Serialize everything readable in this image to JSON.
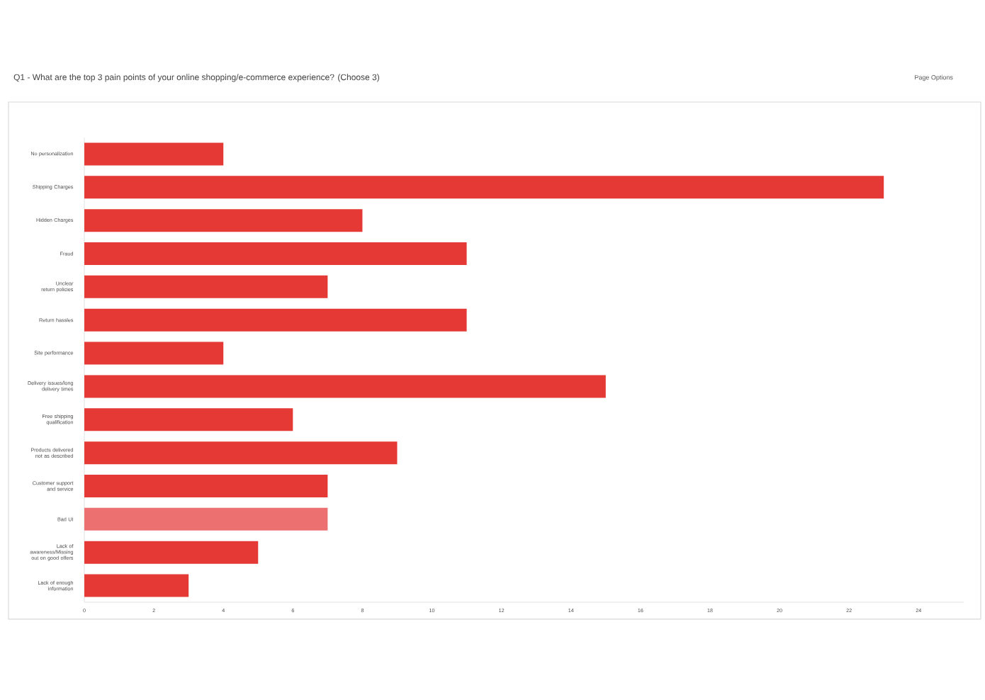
{
  "chart_data": {
    "type": "bar",
    "orientation": "horizontal",
    "title": "Q1 - What are the top 3 pain points of your online shopping/e-commerce experience? (Choose 3)",
    "annotations": [
      "Page Options"
    ],
    "categories": [
      "No personalization",
      "Shipping Charges",
      "Hidden Charges",
      "Fraud",
      "Unclear return policies",
      "Return hassles",
      "Site performance",
      "Delivery issues/long delivery times",
      "Free shipping qualification",
      "Products delivered not as described",
      "Customer support and service",
      "Bad UI",
      "Lack of awareness/Missing out on good offers",
      "Lack of enough information"
    ],
    "values": [
      4,
      23,
      8,
      11,
      7,
      11,
      4,
      15,
      6,
      9,
      7,
      7,
      5,
      3
    ],
    "colors": [
      "#e53935",
      "#e53935",
      "#e53935",
      "#e53935",
      "#e53935",
      "#e53935",
      "#e53935",
      "#e53935",
      "#e53935",
      "#e53935",
      "#e53935",
      "#ec7070",
      "#e53935",
      "#e53935"
    ],
    "xlim": [
      0,
      25.3
    ],
    "xticks": [
      0,
      2,
      4,
      6,
      8,
      10,
      12,
      14,
      16,
      18,
      20,
      22,
      24
    ],
    "grid": false
  }
}
